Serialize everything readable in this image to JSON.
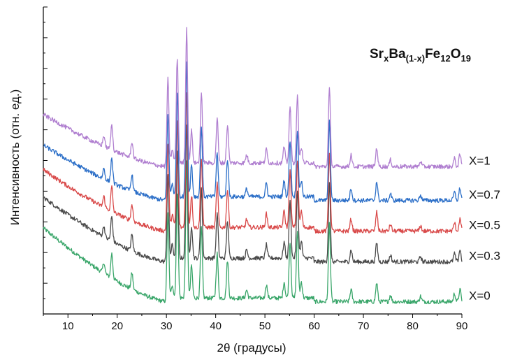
{
  "chart_data": {
    "type": "line",
    "title_parts": [
      {
        "text": "Sr",
        "sub": false
      },
      {
        "text": "x",
        "sub": true
      },
      {
        "text": "Ba",
        "sub": false
      },
      {
        "text": "(1-x)",
        "sub": true
      },
      {
        "text": "Fe",
        "sub": false
      },
      {
        "text": "12",
        "sub": true
      },
      {
        "text": "O",
        "sub": false
      },
      {
        "text": "19",
        "sub": true
      }
    ],
    "xlabel": "2θ (градусы)",
    "ylabel": "Интенсивность (отн. ед.)",
    "xlim": [
      5,
      90
    ],
    "ylim": [
      0,
      100
    ],
    "xticks": [
      10,
      20,
      30,
      40,
      50,
      60,
      70,
      80,
      90
    ],
    "y_tick_labels_shown": false,
    "peaks": [
      {
        "pos": 17.3,
        "h": 0.08
      },
      {
        "pos": 18.9,
        "h": 0.18
      },
      {
        "pos": 23.0,
        "h": 0.12
      },
      {
        "pos": 30.3,
        "h": 0.62
      },
      {
        "pos": 31.2,
        "h": 0.1
      },
      {
        "pos": 32.2,
        "h": 0.78
      },
      {
        "pos": 34.1,
        "h": 1.0
      },
      {
        "pos": 35.1,
        "h": 0.24
      },
      {
        "pos": 37.1,
        "h": 0.52
      },
      {
        "pos": 40.3,
        "h": 0.33
      },
      {
        "pos": 42.4,
        "h": 0.28
      },
      {
        "pos": 46.3,
        "h": 0.06
      },
      {
        "pos": 50.3,
        "h": 0.1
      },
      {
        "pos": 53.9,
        "h": 0.12
      },
      {
        "pos": 55.1,
        "h": 0.42
      },
      {
        "pos": 56.6,
        "h": 0.5
      },
      {
        "pos": 57.4,
        "h": 0.12
      },
      {
        "pos": 63.1,
        "h": 0.58
      },
      {
        "pos": 67.5,
        "h": 0.09
      },
      {
        "pos": 72.7,
        "h": 0.14
      },
      {
        "pos": 75.5,
        "h": 0.05
      },
      {
        "pos": 81.6,
        "h": 0.04
      },
      {
        "pos": 88.5,
        "h": 0.06
      },
      {
        "pos": 89.6,
        "h": 0.09
      }
    ],
    "series": [
      {
        "name": "X=0",
        "color": "#3aa66a",
        "offset": 4,
        "background_start": 28,
        "peak_scale": 44
      },
      {
        "name": "X=0.3",
        "color": "#4a4a4a",
        "offset": 17,
        "background_start": 38,
        "peak_scale": 44
      },
      {
        "name": "X=0.5",
        "color": "#d94a4a",
        "offset": 27,
        "background_start": 47,
        "peak_scale": 44
      },
      {
        "name": "X=0.7",
        "color": "#2c6fc8",
        "offset": 37,
        "background_start": 55,
        "peak_scale": 44
      },
      {
        "name": "X=1",
        "color": "#b07fd0",
        "offset": 48,
        "background_start": 65,
        "peak_scale": 44
      }
    ]
  }
}
